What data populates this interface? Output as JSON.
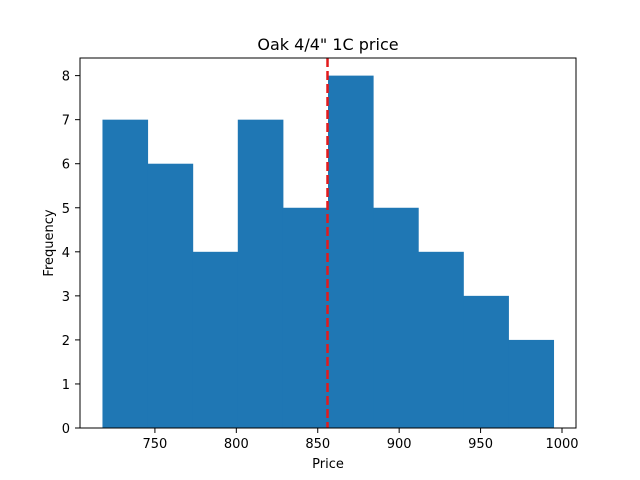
{
  "chart_data": {
    "type": "bar",
    "title": "Oak 4/4\" 1C price",
    "xlabel": "Price",
    "ylabel": "Frequency",
    "bins": [
      {
        "start": 717.8,
        "end": 745.5,
        "count": 7
      },
      {
        "start": 745.5,
        "end": 773.2,
        "count": 6
      },
      {
        "start": 773.2,
        "end": 800.9,
        "count": 4
      },
      {
        "start": 800.9,
        "end": 828.6,
        "count": 7
      },
      {
        "start": 828.6,
        "end": 856.3,
        "count": 5
      },
      {
        "start": 856.3,
        "end": 884.0,
        "count": 8
      },
      {
        "start": 884.0,
        "end": 911.7,
        "count": 5
      },
      {
        "start": 911.7,
        "end": 939.4,
        "count": 4
      },
      {
        "start": 939.4,
        "end": 967.1,
        "count": 3
      },
      {
        "start": 967.1,
        "end": 994.8,
        "count": 2
      }
    ],
    "xlim": [
      704,
      1008.6
    ],
    "ylim": [
      0,
      8.4
    ],
    "xticks": [
      750,
      800,
      850,
      900,
      950,
      1000
    ],
    "yticks": [
      0,
      1,
      2,
      3,
      4,
      5,
      6,
      7,
      8
    ],
    "reference_line": {
      "x": 856,
      "color": "#e31a1c",
      "style": "dashed"
    },
    "bar_color": "#1f77b4",
    "grid": false
  }
}
